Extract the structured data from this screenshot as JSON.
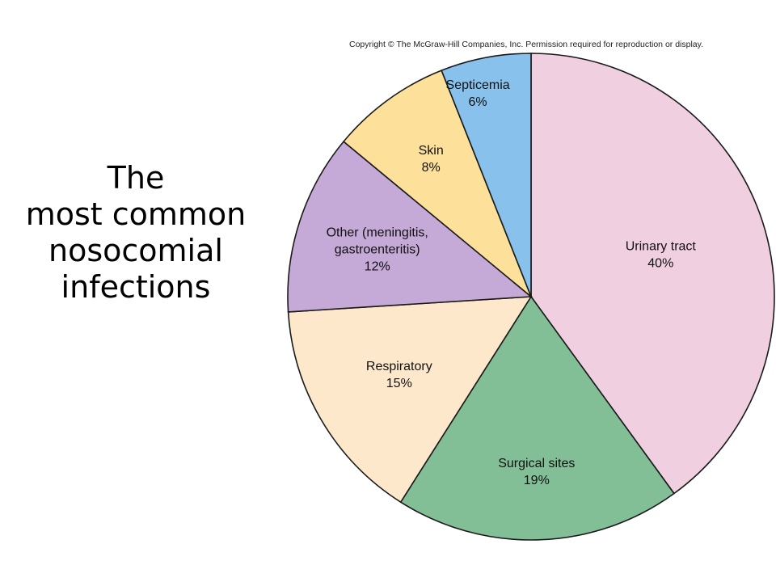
{
  "slide": {
    "title_lines": [
      "The",
      "most common",
      "nosocomial",
      "infections"
    ]
  },
  "copyright": "Copyright © The McGraw-Hill Companies, Inc. Permission required for reproduction or display.",
  "chart_data": {
    "type": "pie",
    "title": "",
    "direction": "clockwise",
    "start": "top",
    "slices": [
      {
        "key": "urinary-tract",
        "label": [
          "Urinary tract"
        ],
        "value": 40,
        "value_label": "40%",
        "color": "#f0cfe0"
      },
      {
        "key": "surgical-sites",
        "label": [
          "Surgical sites"
        ],
        "value": 19,
        "value_label": "19%",
        "color": "#82be96"
      },
      {
        "key": "respiratory",
        "label": [
          "Respiratory"
        ],
        "value": 15,
        "value_label": "15%",
        "color": "#fde8cb"
      },
      {
        "key": "other",
        "label": [
          "Other (meningitis,",
          "gastroenteritis)"
        ],
        "value": 12,
        "value_label": "12%",
        "color": "#c5a9d6"
      },
      {
        "key": "skin",
        "label": [
          "Skin"
        ],
        "value": 8,
        "value_label": "8%",
        "color": "#fde19a"
      },
      {
        "key": "septicemia",
        "label": [
          "Septicemia"
        ],
        "value": 6,
        "value_label": "6%",
        "color": "#87c1ec"
      }
    ]
  }
}
